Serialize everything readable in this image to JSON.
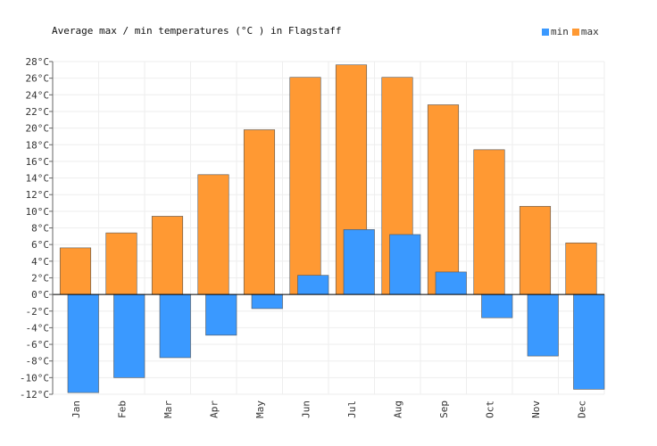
{
  "chart_data": {
    "type": "bar",
    "title": "Average max / min temperatures (°C ) in Flagstaff",
    "categories": [
      "Jan",
      "Feb",
      "Mar",
      "Apr",
      "May",
      "Jun",
      "Jul",
      "Aug",
      "Sep",
      "Oct",
      "Nov",
      "Dec"
    ],
    "series": [
      {
        "name": "min",
        "color": "#3a99ff",
        "values": [
          -11.8,
          -10.0,
          -7.6,
          -4.9,
          -1.7,
          2.3,
          7.8,
          7.2,
          2.7,
          -2.8,
          -7.4,
          -11.4
        ]
      },
      {
        "name": "max",
        "color": "#ff9933",
        "values": [
          5.6,
          7.4,
          9.4,
          14.4,
          19.8,
          26.1,
          27.6,
          26.1,
          22.8,
          17.4,
          10.6,
          6.2
        ]
      }
    ],
    "ylim": [
      -12,
      28
    ],
    "y_tick_step": 2,
    "y_unit": "°C",
    "grid": true,
    "legend_position": "top-right",
    "xlabel": "",
    "ylabel": ""
  }
}
